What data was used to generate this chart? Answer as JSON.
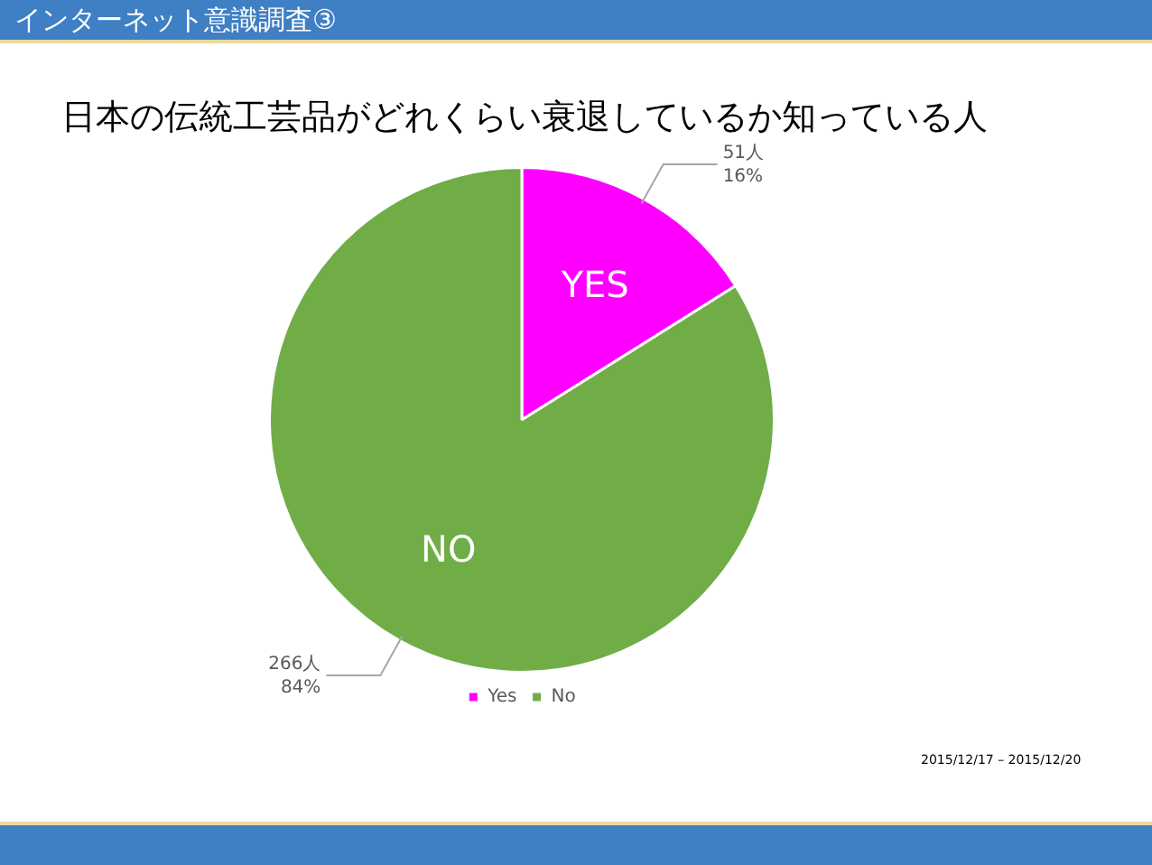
{
  "chart_data": {
    "type": "pie",
    "subtitle": "インターネット意識調査③",
    "title": "日本の伝統工芸品がどれくらい衰退しているか知っている人",
    "categories": [
      "Yes",
      "No"
    ],
    "values": [
      51,
      266
    ],
    "colors": [
      "#ff00ff",
      "#70ad47"
    ],
    "value_labels": [
      "51人\n16%",
      "266人\n84%"
    ],
    "legend": "bottom",
    "annotations": [
      {
        "text": "YES",
        "x": "Yes"
      },
      {
        "text": "NO",
        "x": "No"
      },
      "2015/12/17 – 2015/12/20"
    ]
  }
}
